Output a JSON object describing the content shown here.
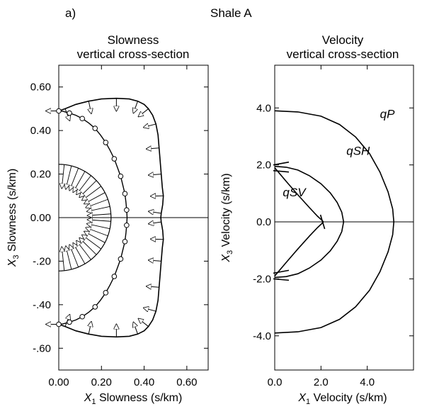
{
  "panel_label": "a)",
  "figure_title": "Shale A",
  "chart_data": [
    {
      "type": "line",
      "title_line1": "Slowness",
      "title_line2": "vertical cross-section",
      "xlabel_sym": "X",
      "xlabel_sub": "1",
      "xlabel_text": " Slowness (s/km)",
      "ylabel_sym": "X",
      "ylabel_sub": "3",
      "ylabel_text": " Slowness (s/km)",
      "xlim": [
        0,
        0.7
      ],
      "ylim": [
        -0.7,
        0.7
      ],
      "xticks": [
        {
          "value": 0.0,
          "label": "0.00"
        },
        {
          "value": 0.2,
          "label": "0.20"
        },
        {
          "value": 0.4,
          "label": "0.40"
        },
        {
          "value": 0.6,
          "label": "0.60"
        }
      ],
      "yticks": [
        {
          "value": 0.6,
          "label": "0.60"
        },
        {
          "value": 0.4,
          "label": "0.40"
        },
        {
          "value": 0.2,
          "label": "0.20"
        },
        {
          "value": 0.0,
          "label": "0.00"
        },
        {
          "value": -0.2,
          "label": "-.20"
        },
        {
          "value": -0.4,
          "label": "-.40"
        },
        {
          "value": -0.6,
          "label": "-.60"
        }
      ],
      "grid": false,
      "series": [
        {
          "marker": "arrow",
          "points": [
            [
              0.0,
              0.49
            ],
            [
              0.03,
              0.5
            ],
            [
              0.08,
              0.52
            ],
            [
              0.14,
              0.535
            ],
            [
              0.2,
              0.545
            ],
            [
              0.27,
              0.548
            ],
            [
              0.33,
              0.545
            ],
            [
              0.37,
              0.535
            ],
            [
              0.4,
              0.52
            ],
            [
              0.42,
              0.5
            ],
            [
              0.44,
              0.47
            ],
            [
              0.455,
              0.43
            ],
            [
              0.465,
              0.38
            ],
            [
              0.47,
              0.32
            ],
            [
              0.475,
              0.26
            ],
            [
              0.48,
              0.2
            ],
            [
              0.485,
              0.14
            ],
            [
              0.49,
              0.1
            ],
            [
              0.487,
              0.06
            ],
            [
              0.48,
              0.02
            ],
            [
              0.478,
              0.0
            ],
            [
              0.48,
              -0.02
            ],
            [
              0.487,
              -0.06
            ],
            [
              0.49,
              -0.1
            ],
            [
              0.485,
              -0.14
            ],
            [
              0.48,
              -0.2
            ],
            [
              0.475,
              -0.26
            ],
            [
              0.47,
              -0.32
            ],
            [
              0.465,
              -0.38
            ],
            [
              0.455,
              -0.43
            ],
            [
              0.44,
              -0.47
            ],
            [
              0.42,
              -0.5
            ],
            [
              0.4,
              -0.52
            ],
            [
              0.37,
              -0.535
            ],
            [
              0.33,
              -0.545
            ],
            [
              0.27,
              -0.548
            ],
            [
              0.2,
              -0.545
            ],
            [
              0.14,
              -0.535
            ],
            [
              0.08,
              -0.52
            ],
            [
              0.03,
              -0.5
            ],
            [
              0.0,
              -0.49
            ]
          ]
        },
        {
          "marker": "circle",
          "points": [
            [
              0.0,
              0.49
            ],
            [
              0.02,
              0.488
            ],
            [
              0.05,
              0.48
            ],
            [
              0.08,
              0.47
            ],
            [
              0.11,
              0.455
            ],
            [
              0.14,
              0.435
            ],
            [
              0.17,
              0.41
            ],
            [
              0.195,
              0.38
            ],
            [
              0.22,
              0.345
            ],
            [
              0.24,
              0.31
            ],
            [
              0.26,
              0.27
            ],
            [
              0.275,
              0.23
            ],
            [
              0.29,
              0.19
            ],
            [
              0.3,
              0.15
            ],
            [
              0.31,
              0.11
            ],
            [
              0.315,
              0.07
            ],
            [
              0.318,
              0.035
            ],
            [
              0.32,
              0.0
            ],
            [
              0.318,
              -0.035
            ],
            [
              0.315,
              -0.07
            ],
            [
              0.31,
              -0.11
            ],
            [
              0.3,
              -0.15
            ],
            [
              0.29,
              -0.19
            ],
            [
              0.275,
              -0.23
            ],
            [
              0.26,
              -0.27
            ],
            [
              0.24,
              -0.31
            ],
            [
              0.22,
              -0.345
            ],
            [
              0.195,
              -0.38
            ],
            [
              0.17,
              -0.41
            ],
            [
              0.14,
              -0.435
            ],
            [
              0.11,
              -0.455
            ],
            [
              0.08,
              -0.47
            ],
            [
              0.05,
              -0.48
            ],
            [
              0.02,
              -0.488
            ],
            [
              0.0,
              -0.49
            ]
          ]
        },
        {
          "marker": "tick",
          "center": [
            0.0,
            0.0
          ],
          "radius": 0.245,
          "theta_range_deg": [
            -90,
            90
          ]
        }
      ]
    },
    {
      "type": "line",
      "title_line1": "Velocity",
      "title_line2": "vertical cross-section",
      "xlabel_sym": "X",
      "xlabel_sub": "1",
      "xlabel_text": " Velocity (s/km)",
      "ylabel_sym": "X",
      "ylabel_sub": "3",
      "ylabel_text": " Velocity (s/km)",
      "xlim": [
        0,
        6.0
      ],
      "ylim": [
        -5.2,
        5.5
      ],
      "xticks": [
        {
          "value": 0.0,
          "label": "0.0"
        },
        {
          "value": 2.0,
          "label": "2.0"
        },
        {
          "value": 4.0,
          "label": "4.0"
        }
      ],
      "yticks": [
        {
          "value": 4.0,
          "label": "4.0"
        },
        {
          "value": 2.0,
          "label": "2.0"
        },
        {
          "value": 0.0,
          "label": "0.0"
        },
        {
          "value": -2.0,
          "label": "-2.0"
        },
        {
          "value": -4.0,
          "label": "-4.0"
        }
      ],
      "grid": false,
      "series": [
        {
          "name": "qP",
          "points": [
            [
              0.0,
              3.9
            ],
            [
              1.0,
              3.86
            ],
            [
              2.0,
              3.71
            ],
            [
              2.8,
              3.42
            ],
            [
              3.5,
              2.98
            ],
            [
              4.1,
              2.4
            ],
            [
              4.55,
              1.75
            ],
            [
              4.9,
              1.05
            ],
            [
              5.1,
              0.45
            ],
            [
              5.15,
              0.0
            ],
            [
              5.1,
              -0.45
            ],
            [
              4.9,
              -1.05
            ],
            [
              4.55,
              -1.75
            ],
            [
              4.1,
              -2.4
            ],
            [
              3.5,
              -2.98
            ],
            [
              2.8,
              -3.42
            ],
            [
              2.0,
              -3.71
            ],
            [
              1.0,
              -3.86
            ],
            [
              0.0,
              -3.9
            ]
          ]
        },
        {
          "name": "qSH",
          "points": [
            [
              0.0,
              1.95
            ],
            [
              0.5,
              1.92
            ],
            [
              1.0,
              1.82
            ],
            [
              1.5,
              1.62
            ],
            [
              2.0,
              1.34
            ],
            [
              2.4,
              1.02
            ],
            [
              2.7,
              0.68
            ],
            [
              2.9,
              0.34
            ],
            [
              2.98,
              0.0
            ],
            [
              2.9,
              -0.34
            ],
            [
              2.7,
              -0.68
            ],
            [
              2.4,
              -1.02
            ],
            [
              2.0,
              -1.34
            ],
            [
              1.5,
              -1.62
            ],
            [
              1.0,
              -1.82
            ],
            [
              0.5,
              -1.92
            ],
            [
              0.0,
              -1.95
            ]
          ]
        },
        {
          "name": "qSV",
          "points": [
            [
              0.0,
              1.9
            ],
            [
              0.5,
              1.42
            ],
            [
              1.0,
              0.95
            ],
            [
              1.5,
              0.5
            ],
            [
              1.85,
              0.2
            ],
            [
              2.05,
              0.05
            ],
            [
              2.1,
              0.0
            ],
            [
              2.05,
              -0.05
            ],
            [
              1.85,
              -0.2
            ],
            [
              1.5,
              -0.5
            ],
            [
              1.0,
              -0.95
            ],
            [
              0.5,
              -1.42
            ],
            [
              0.0,
              -1.9
            ]
          ]
        }
      ]
    }
  ]
}
